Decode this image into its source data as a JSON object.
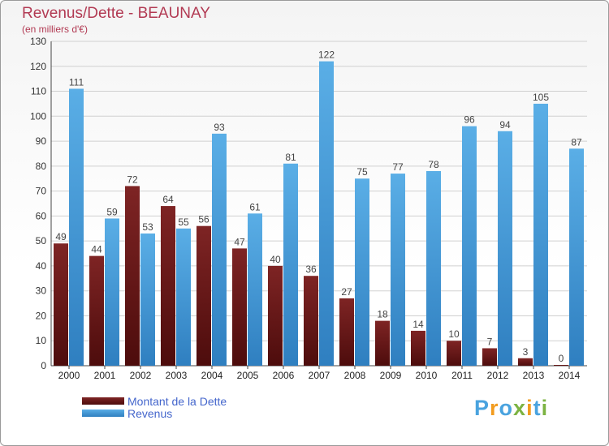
{
  "chart_data": {
    "type": "bar",
    "title": "Revenus/Dette - BEAUNAY",
    "subtitle": "(en milliers d'€)",
    "categories": [
      "2000",
      "2001",
      "2002",
      "2003",
      "2004",
      "2005",
      "2006",
      "2007",
      "2008",
      "2009",
      "2010",
      "2011",
      "2012",
      "2013",
      "2014"
    ],
    "series": [
      {
        "name": "Montant de la Dette",
        "color": "#7a1a1a",
        "values": [
          49,
          44,
          72,
          64,
          56,
          47,
          40,
          36,
          27,
          18,
          14,
          10,
          7,
          3,
          0
        ]
      },
      {
        "name": "Revenus",
        "color": "#4aa3df",
        "values": [
          111,
          59,
          53,
          55,
          93,
          61,
          81,
          122,
          75,
          77,
          78,
          96,
          94,
          105,
          87
        ]
      }
    ],
    "ylim": [
      0,
      130
    ],
    "yticks": [
      0,
      10,
      20,
      30,
      40,
      50,
      60,
      70,
      80,
      90,
      100,
      110,
      120,
      130
    ],
    "grid": true,
    "legend_position": "bottom-left"
  },
  "brand": {
    "logo_text": "Proxiti"
  }
}
